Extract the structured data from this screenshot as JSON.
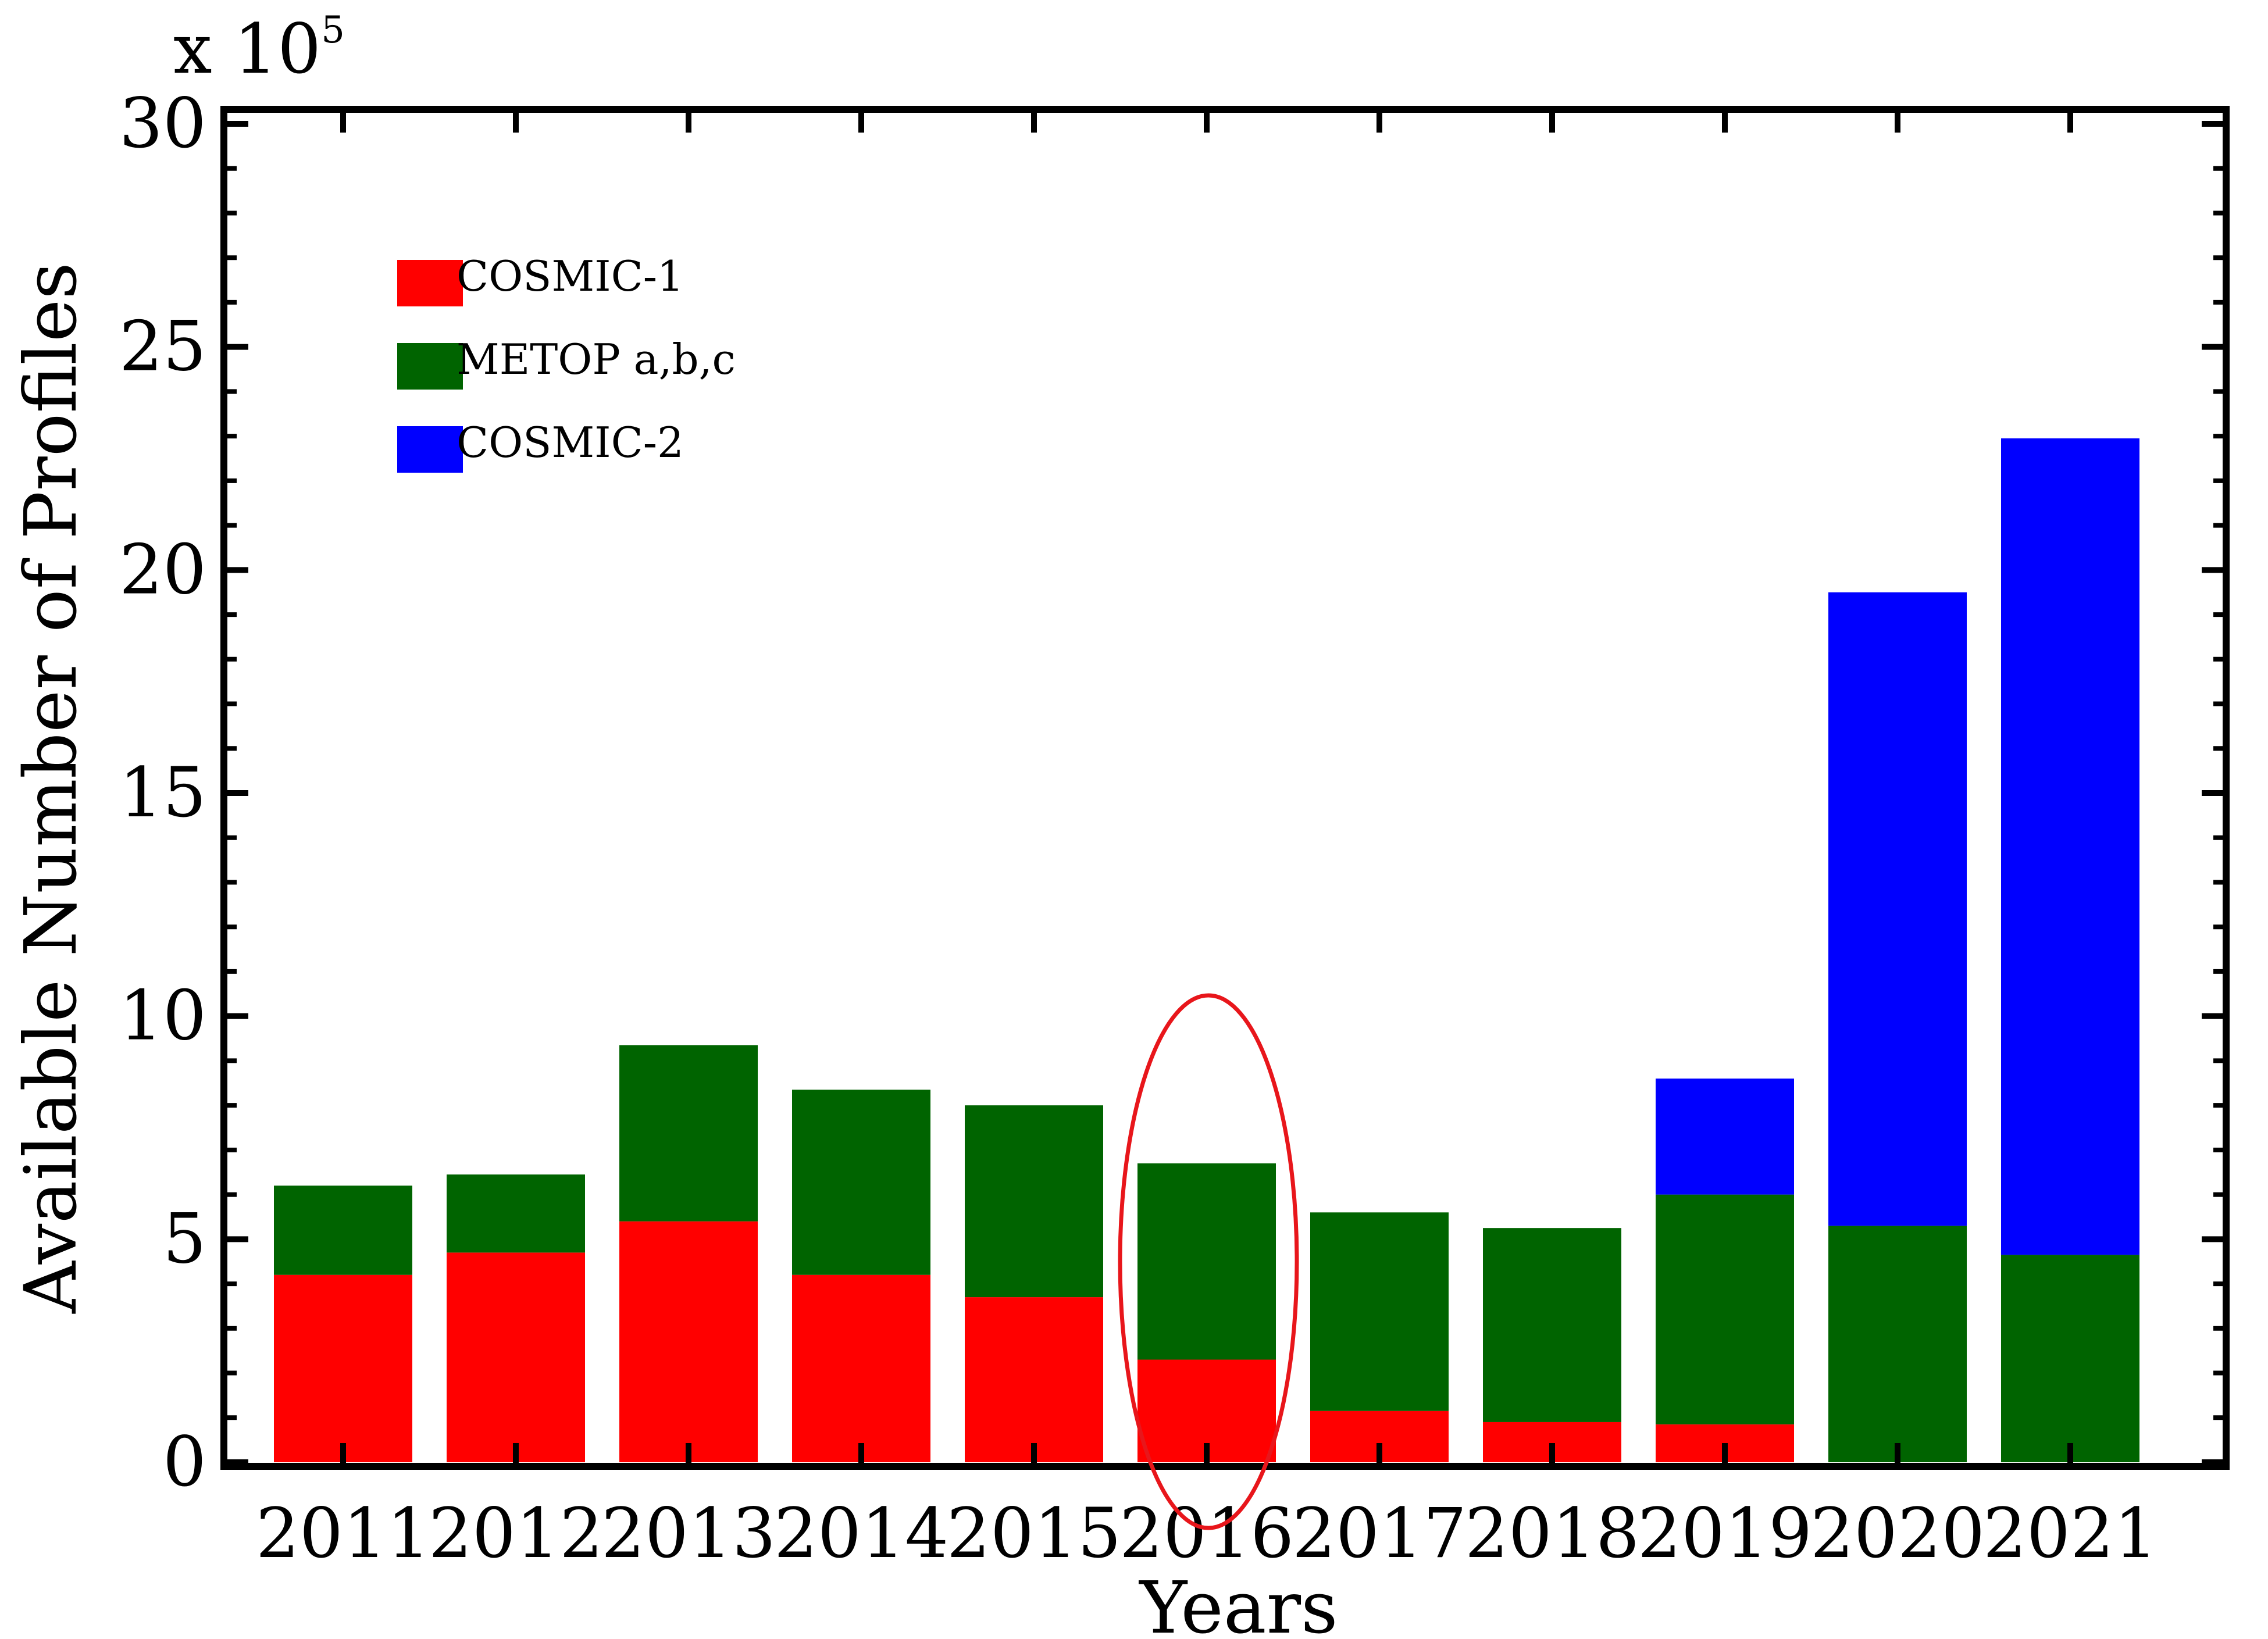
{
  "chart_data": {
    "type": "bar",
    "stacked": true,
    "xlabel": "Years",
    "ylabel": "Available Number of Profiles",
    "y_multiplier": {
      "base": "x 10",
      "exponent": "5"
    },
    "ylim": [
      0,
      30
    ],
    "yticks": [
      0,
      5,
      10,
      15,
      20,
      25,
      30
    ],
    "grid": false,
    "legend_position": "top-left",
    "categories": [
      "2011",
      "2012",
      "2013",
      "2014",
      "2015",
      "2016",
      "2017",
      "2018",
      "2019",
      "2020",
      "2021"
    ],
    "series": [
      {
        "name": "COSMIC-1",
        "color": "#ff0000",
        "values": [
          4.2,
          4.7,
          5.4,
          4.2,
          3.7,
          2.3,
          1.15,
          0.9,
          0.85,
          0,
          0
        ]
      },
      {
        "name": "METOP a,b,c",
        "color": "#006400",
        "values": [
          2.0,
          1.75,
          3.95,
          4.15,
          4.3,
          4.4,
          4.45,
          4.35,
          5.15,
          5.3,
          4.65
        ]
      },
      {
        "name": "COSMIC-2",
        "color": "#0000ff",
        "values": [
          0,
          0,
          0,
          0,
          0,
          0,
          0,
          0,
          2.6,
          14.2,
          18.3
        ]
      }
    ],
    "annotations": [
      {
        "type": "ellipse",
        "category": "2016",
        "color": "#e8161b"
      }
    ]
  }
}
